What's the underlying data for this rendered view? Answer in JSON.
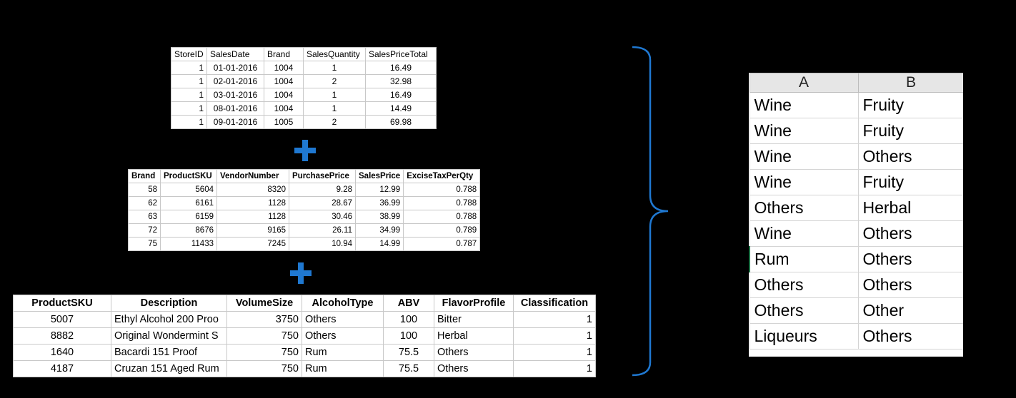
{
  "sales_table": {
    "headers": [
      "StoreID",
      "SalesDate",
      "Brand",
      "SalesQuantity",
      "SalesPriceTotal"
    ],
    "rows": [
      [
        "1",
        "01-01-2016",
        "1004",
        "1",
        "16.49"
      ],
      [
        "1",
        "02-01-2016",
        "1004",
        "2",
        "32.98"
      ],
      [
        "1",
        "03-01-2016",
        "1004",
        "1",
        "16.49"
      ],
      [
        "1",
        "08-01-2016",
        "1004",
        "1",
        "14.49"
      ],
      [
        "1",
        "09-01-2016",
        "1005",
        "2",
        "69.98"
      ]
    ]
  },
  "purchase_table": {
    "headers": [
      "Brand",
      "ProductSKU",
      "VendorNumber",
      "PurchasePrice",
      "SalesPrice",
      "ExciseTaxPerQty"
    ],
    "rows": [
      [
        "58",
        "5604",
        "8320",
        "9.28",
        "12.99",
        "0.788"
      ],
      [
        "62",
        "6161",
        "1128",
        "28.67",
        "36.99",
        "0.788"
      ],
      [
        "63",
        "6159",
        "1128",
        "30.46",
        "38.99",
        "0.788"
      ],
      [
        "72",
        "8676",
        "9165",
        "26.11",
        "34.99",
        "0.789"
      ],
      [
        "75",
        "11433",
        "7245",
        "10.94",
        "14.99",
        "0.787"
      ]
    ]
  },
  "product_table": {
    "headers": [
      "ProductSKU",
      "Description",
      "VolumeSize",
      "AlcoholType",
      "ABV",
      "FlavorProfile",
      "Classification"
    ],
    "rows": [
      [
        "5007",
        "Ethyl Alcohol 200 Proo",
        "3750",
        "Others",
        "100",
        "Bitter",
        "1"
      ],
      [
        "8882",
        "Original Wondermint S",
        "750",
        "Others",
        "100",
        "Herbal",
        "1"
      ],
      [
        "1640",
        "Bacardi 151 Proof",
        "750",
        "Rum",
        "75.5",
        "Others",
        "1"
      ],
      [
        "4187",
        "Cruzan 151 Aged Rum",
        "750",
        "Rum",
        "75.5",
        "Others",
        "1"
      ]
    ]
  },
  "excel_sheet": {
    "columns": [
      "A",
      "B"
    ],
    "rows": [
      [
        "Wine",
        "Fruity"
      ],
      [
        "Wine",
        "Fruity"
      ],
      [
        "Wine",
        "Others"
      ],
      [
        "Wine",
        "Fruity"
      ],
      [
        "Others",
        "Herbal"
      ],
      [
        "Wine",
        "Others"
      ],
      [
        "Rum",
        "Others"
      ],
      [
        "Others",
        "Others"
      ],
      [
        "Others",
        "Other"
      ],
      [
        "Liqueurs",
        "Others"
      ]
    ]
  },
  "colors": {
    "background": "#000000",
    "plus": "#1f78d1",
    "brace": "#1f78d1",
    "excel_header": "#e6e6e6"
  }
}
